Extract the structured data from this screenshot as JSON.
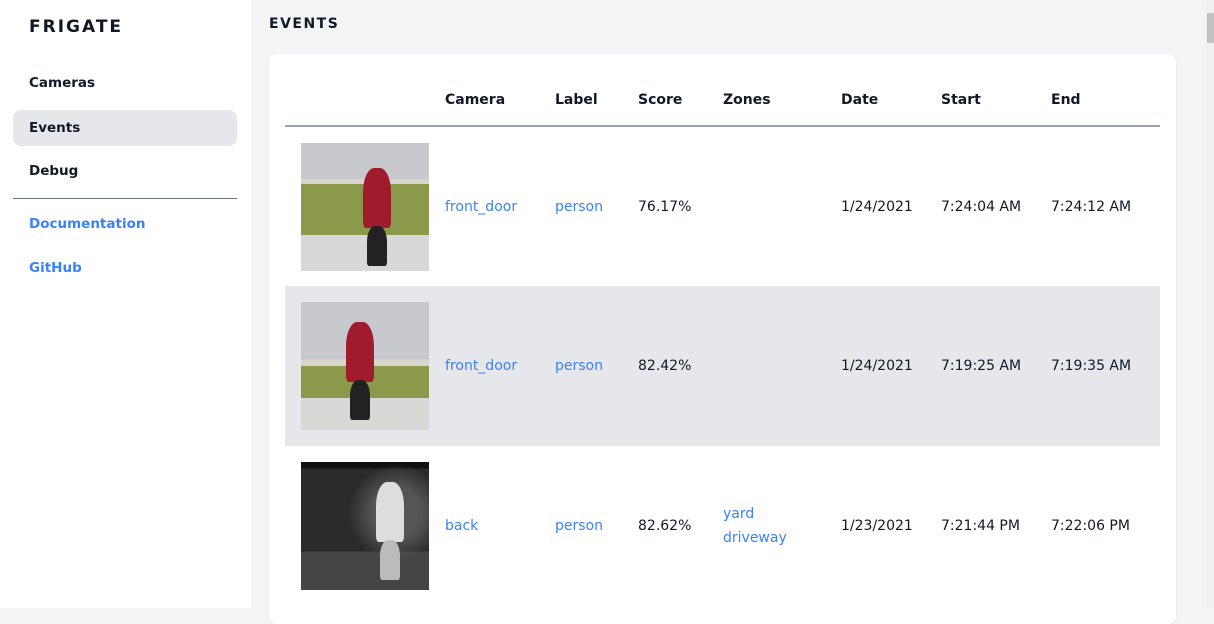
{
  "sidebar": {
    "brand": "FRIGATE",
    "items": [
      {
        "label": "Cameras"
      },
      {
        "label": "Events",
        "active": true
      },
      {
        "label": "Debug"
      }
    ],
    "links": [
      {
        "label": "Documentation"
      },
      {
        "label": "GitHub"
      }
    ]
  },
  "page": {
    "title": "EVENTS"
  },
  "table": {
    "headers": [
      "",
      "Camera",
      "Label",
      "Score",
      "Zones",
      "Date",
      "Start",
      "End"
    ],
    "rows": [
      {
        "thumbnail": "person with dog, red coat",
        "camera": "front_door",
        "label": "person",
        "score": "76.17%",
        "zones": [
          "",
          ""
        ],
        "date": "1/24/2021",
        "start": "7:24:04 AM",
        "end": "7:24:12 AM"
      },
      {
        "thumbnail": "person with dog, red coat",
        "camera": "front_door",
        "label": "person",
        "score": "82.42%",
        "zones": [
          "",
          ""
        ],
        "date": "1/24/2021",
        "start": "7:19:25 AM",
        "end": "7:19:35 AM"
      },
      {
        "thumbnail": "person at night, grayscale",
        "camera": "back",
        "label": "person",
        "score": "82.62%",
        "zones": [
          "yard",
          "driveway"
        ],
        "date": "1/23/2021",
        "start": "7:21:44 PM",
        "end": "7:22:06 PM"
      }
    ]
  },
  "colors": {
    "link": "#3b82f6",
    "active_bg": "#e5e7eb"
  }
}
